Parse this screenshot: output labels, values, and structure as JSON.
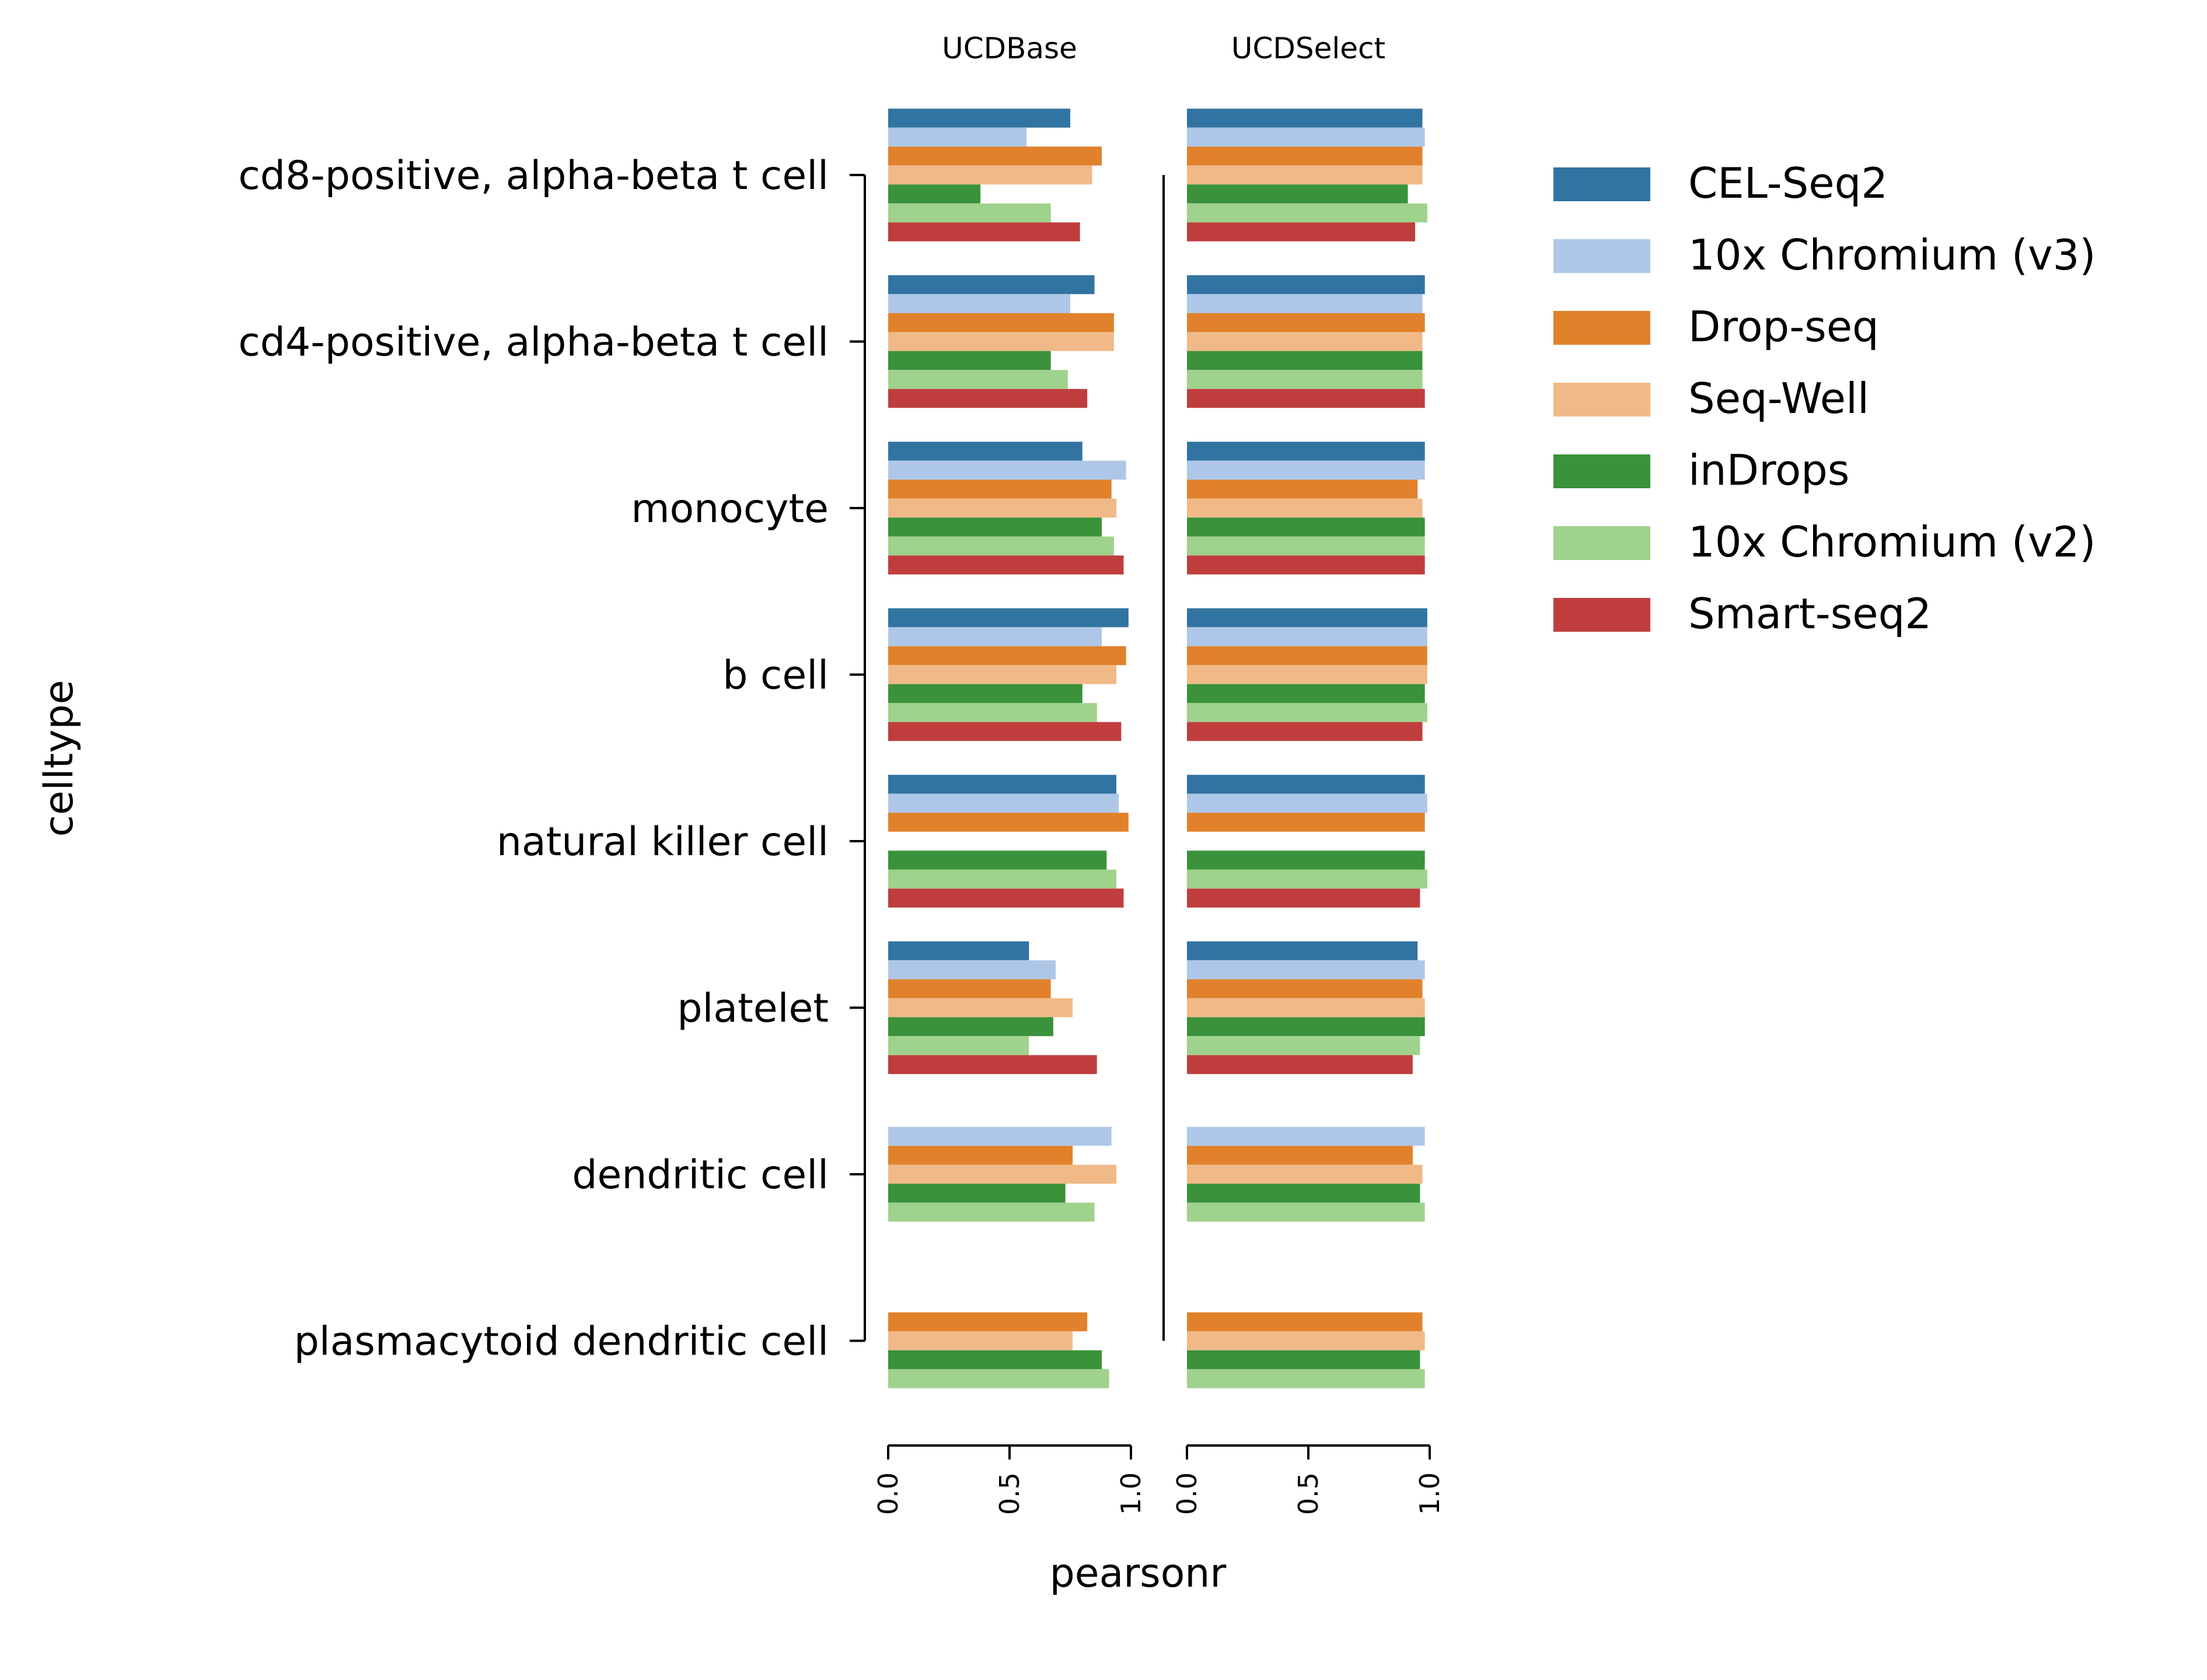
{
  "chart_data": {
    "type": "bar",
    "orientation": "horizontal",
    "ylabel": "celltype",
    "xlabel": "pearsonr",
    "xlim": [
      0,
      1
    ],
    "xticks": [
      "0.0",
      "0.5",
      "1.0"
    ],
    "grid": false,
    "legend_position": "top-right",
    "categories": [
      "cd8-positive, alpha-beta t cell",
      "cd4-positive, alpha-beta t cell",
      "monocyte",
      "b cell",
      "natural killer cell",
      "platelet",
      "dendritic cell",
      "plasmacytoid dendritic cell"
    ],
    "legend": [
      {
        "name": "CEL-Seq2",
        "color": "#3274a1"
      },
      {
        "name": "10x Chromium (v3)",
        "color": "#aec7e8"
      },
      {
        "name": "Drop-seq",
        "color": "#e1812c"
      },
      {
        "name": "Seq-Well",
        "color": "#f0b987"
      },
      {
        "name": "inDrops",
        "color": "#3a923a"
      },
      {
        "name": "10x Chromium (v2)",
        "color": "#9fd28c"
      },
      {
        "name": "Smart-seq2",
        "color": "#c03d3e"
      }
    ],
    "panels": [
      {
        "title": "UCDBase",
        "series": [
          {
            "values": [
              0.75,
              0.85,
              0.8,
              0.99,
              0.94,
              0.58,
              null,
              null
            ]
          },
          {
            "values": [
              0.57,
              0.75,
              0.98,
              0.88,
              0.95,
              0.69,
              0.92,
              null
            ]
          },
          {
            "values": [
              0.88,
              0.93,
              0.92,
              0.98,
              0.99,
              0.67,
              0.76,
              0.82
            ]
          },
          {
            "values": [
              0.84,
              0.93,
              0.94,
              0.94,
              null,
              0.76,
              0.94,
              0.76
            ]
          },
          {
            "values": [
              0.38,
              0.67,
              0.88,
              0.8,
              0.9,
              0.68,
              0.73,
              0.88
            ]
          },
          {
            "values": [
              0.67,
              0.74,
              0.93,
              0.86,
              0.94,
              0.58,
              0.85,
              0.91
            ]
          },
          {
            "values": [
              0.79,
              0.82,
              0.97,
              0.96,
              0.97,
              0.86,
              null,
              null
            ]
          }
        ]
      },
      {
        "title": "UCDSelect",
        "series": [
          {
            "values": [
              0.97,
              0.98,
              0.98,
              0.99,
              0.98,
              0.95,
              null,
              null
            ]
          },
          {
            "values": [
              0.98,
              0.97,
              0.98,
              0.99,
              0.99,
              0.98,
              0.98,
              null
            ]
          },
          {
            "values": [
              0.97,
              0.98,
              0.95,
              0.99,
              0.98,
              0.97,
              0.93,
              0.97
            ]
          },
          {
            "values": [
              0.97,
              0.97,
              0.97,
              0.99,
              null,
              0.98,
              0.97,
              0.98
            ]
          },
          {
            "values": [
              0.91,
              0.97,
              0.98,
              0.98,
              0.98,
              0.98,
              0.96,
              0.96
            ]
          },
          {
            "values": [
              0.99,
              0.97,
              0.98,
              0.99,
              0.99,
              0.96,
              0.98,
              0.98
            ]
          },
          {
            "values": [
              0.94,
              0.98,
              0.98,
              0.97,
              0.96,
              0.93,
              null,
              null
            ]
          }
        ]
      }
    ]
  }
}
